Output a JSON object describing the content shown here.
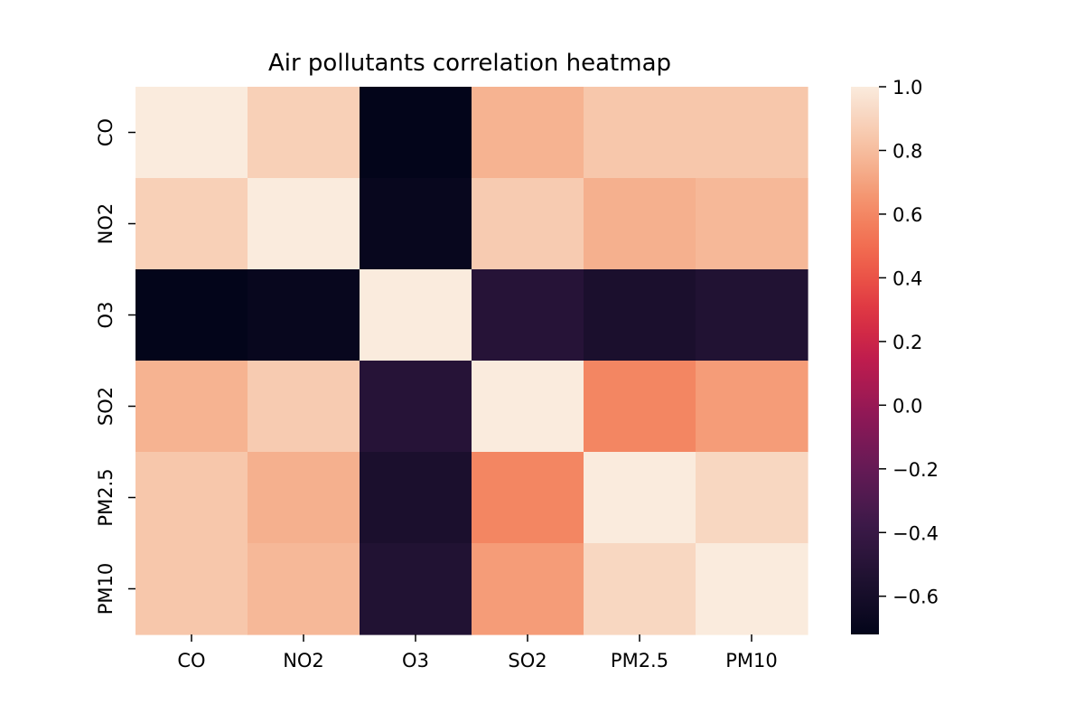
{
  "chart_data": {
    "type": "heatmap",
    "title": "Air pollutants correlation heatmap",
    "x_categories": [
      "CO",
      "NO2",
      "O3",
      "SO2",
      "PM2.5",
      "PM10"
    ],
    "y_categories": [
      "CO",
      "NO2",
      "O3",
      "SO2",
      "PM2.5",
      "PM10"
    ],
    "values": [
      [
        1.0,
        0.88,
        -0.72,
        0.76,
        0.84,
        0.84
      ],
      [
        0.88,
        1.0,
        -0.69,
        0.86,
        0.75,
        0.78
      ],
      [
        -0.72,
        -0.69,
        1.0,
        -0.5,
        -0.57,
        -0.53
      ],
      [
        0.76,
        0.86,
        -0.5,
        1.0,
        0.6,
        0.68
      ],
      [
        0.84,
        0.75,
        -0.57,
        0.6,
        1.0,
        0.91
      ],
      [
        0.84,
        0.78,
        -0.53,
        0.68,
        0.91,
        1.0
      ]
    ],
    "color_range": [
      -0.72,
      1.0
    ],
    "colormap": "rocket",
    "colorbar_ticks": [
      "1.0",
      "0.8",
      "0.6",
      "0.4",
      "0.2",
      "0.0",
      "−0.2",
      "−0.4",
      "−0.6"
    ],
    "colorbar_tick_values": [
      1.0,
      0.8,
      0.6,
      0.4,
      0.2,
      0.0,
      -0.2,
      -0.4,
      -0.6
    ],
    "grid": false,
    "legend": "colorbar-right"
  }
}
